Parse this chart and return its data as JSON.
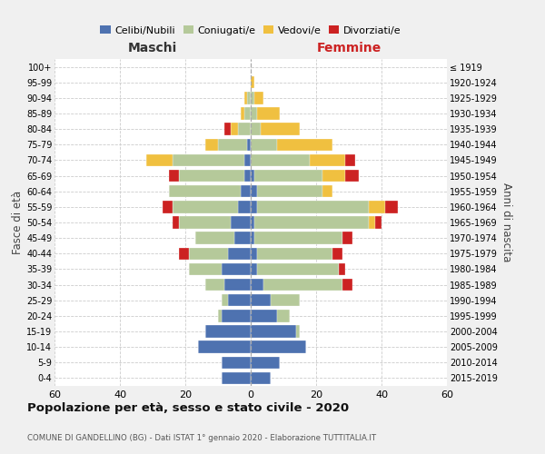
{
  "age_groups": [
    "0-4",
    "5-9",
    "10-14",
    "15-19",
    "20-24",
    "25-29",
    "30-34",
    "35-39",
    "40-44",
    "45-49",
    "50-54",
    "55-59",
    "60-64",
    "65-69",
    "70-74",
    "75-79",
    "80-84",
    "85-89",
    "90-94",
    "95-99",
    "100+"
  ],
  "birth_years": [
    "2015-2019",
    "2010-2014",
    "2005-2009",
    "2000-2004",
    "1995-1999",
    "1990-1994",
    "1985-1989",
    "1980-1984",
    "1975-1979",
    "1970-1974",
    "1965-1969",
    "1960-1964",
    "1955-1959",
    "1950-1954",
    "1945-1949",
    "1940-1944",
    "1935-1939",
    "1930-1934",
    "1925-1929",
    "1920-1924",
    "≤ 1919"
  ],
  "maschi": {
    "celibi": [
      9,
      9,
      16,
      14,
      9,
      7,
      8,
      9,
      7,
      5,
      6,
      4,
      3,
      2,
      2,
      1,
      0,
      0,
      0,
      0,
      0
    ],
    "coniugati": [
      0,
      0,
      0,
      0,
      1,
      2,
      6,
      10,
      12,
      12,
      16,
      20,
      22,
      20,
      22,
      9,
      4,
      2,
      1,
      0,
      0
    ],
    "vedovi": [
      0,
      0,
      0,
      0,
      0,
      0,
      0,
      0,
      0,
      0,
      0,
      0,
      0,
      0,
      8,
      4,
      2,
      1,
      1,
      0,
      0
    ],
    "divorziati": [
      0,
      0,
      0,
      0,
      0,
      0,
      0,
      0,
      3,
      0,
      2,
      3,
      0,
      3,
      0,
      0,
      2,
      0,
      0,
      0,
      0
    ]
  },
  "femmine": {
    "nubili": [
      6,
      9,
      17,
      14,
      8,
      6,
      4,
      2,
      2,
      1,
      1,
      2,
      2,
      1,
      0,
      0,
      0,
      0,
      0,
      0,
      0
    ],
    "coniugate": [
      0,
      0,
      0,
      1,
      4,
      9,
      24,
      25,
      23,
      27,
      35,
      34,
      20,
      21,
      18,
      8,
      3,
      2,
      1,
      0,
      0
    ],
    "vedove": [
      0,
      0,
      0,
      0,
      0,
      0,
      0,
      0,
      0,
      0,
      2,
      5,
      3,
      7,
      11,
      17,
      12,
      7,
      3,
      1,
      0
    ],
    "divorziate": [
      0,
      0,
      0,
      0,
      0,
      0,
      3,
      2,
      3,
      3,
      2,
      4,
      0,
      4,
      3,
      0,
      0,
      0,
      0,
      0,
      0
    ]
  },
  "colors": {
    "celibi": "#4e72b0",
    "coniugati": "#b5c99a",
    "vedovi": "#f0c040",
    "divorziati": "#cc2222"
  },
  "xlim": 60,
  "title": "Popolazione per età, sesso e stato civile - 2020",
  "subtitle": "COMUNE DI GANDELLINO (BG) - Dati ISTAT 1° gennaio 2020 - Elaborazione TUTTITALIA.IT",
  "xlabel_left": "Maschi",
  "xlabel_right": "Femmine",
  "ylabel_left": "Fasce di età",
  "ylabel_right": "Anni di nascita",
  "bg_color": "#f0f0f0",
  "plot_bg_color": "#ffffff"
}
